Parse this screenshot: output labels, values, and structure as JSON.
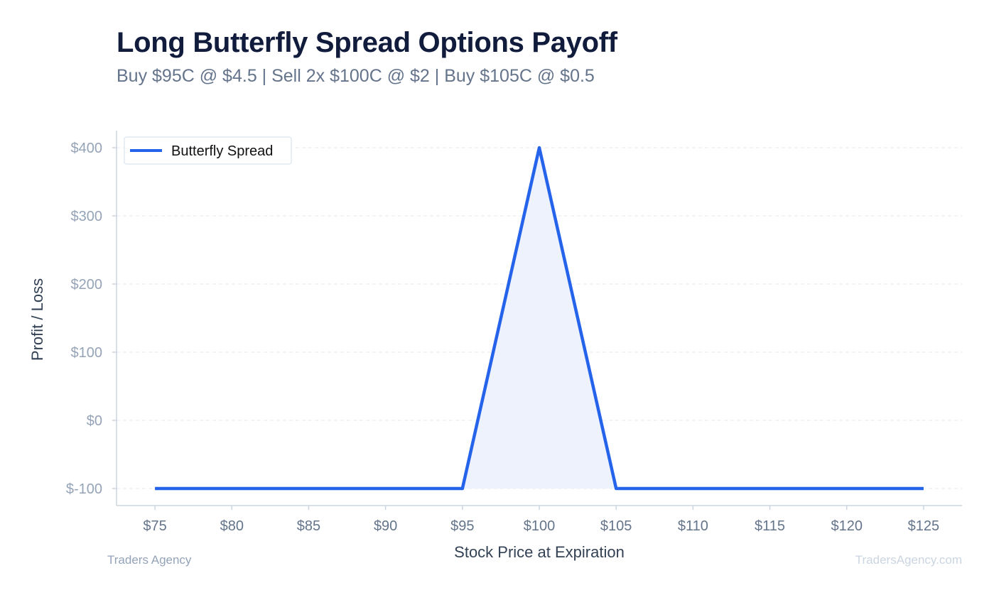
{
  "chart_data": {
    "type": "line",
    "title": "Long Butterfly Spread Options Payoff",
    "subtitle": "Buy $95C @ $4.5 | Sell 2x $100C @ $2 | Buy $105C @ $0.5",
    "xlabel": "Stock Price at Expiration",
    "ylabel": "Profit / Loss",
    "xlim": [
      72.5,
      127.5
    ],
    "ylim": [
      -125,
      425
    ],
    "x_ticks": [
      75,
      80,
      85,
      90,
      95,
      100,
      105,
      110,
      115,
      120,
      125
    ],
    "x_tick_labels": [
      "$75",
      "$80",
      "$85",
      "$90",
      "$95",
      "$100",
      "$105",
      "$110",
      "$115",
      "$120",
      "$125"
    ],
    "y_ticks": [
      -100,
      0,
      100,
      200,
      300,
      400
    ],
    "y_tick_labels": [
      "$-100",
      "$0",
      "$100",
      "$200",
      "$300",
      "$400"
    ],
    "grid": true,
    "legend_position": "top-left",
    "series": [
      {
        "name": "Butterfly Spread",
        "color": "#2563eb",
        "fill": "#eef2fc",
        "x": [
          75,
          95,
          100,
          105,
          125
        ],
        "y": [
          -100,
          -100,
          400,
          -100,
          -100
        ]
      }
    ]
  },
  "footer": {
    "left": "Traders Agency",
    "right": "TradersAgency.com"
  }
}
